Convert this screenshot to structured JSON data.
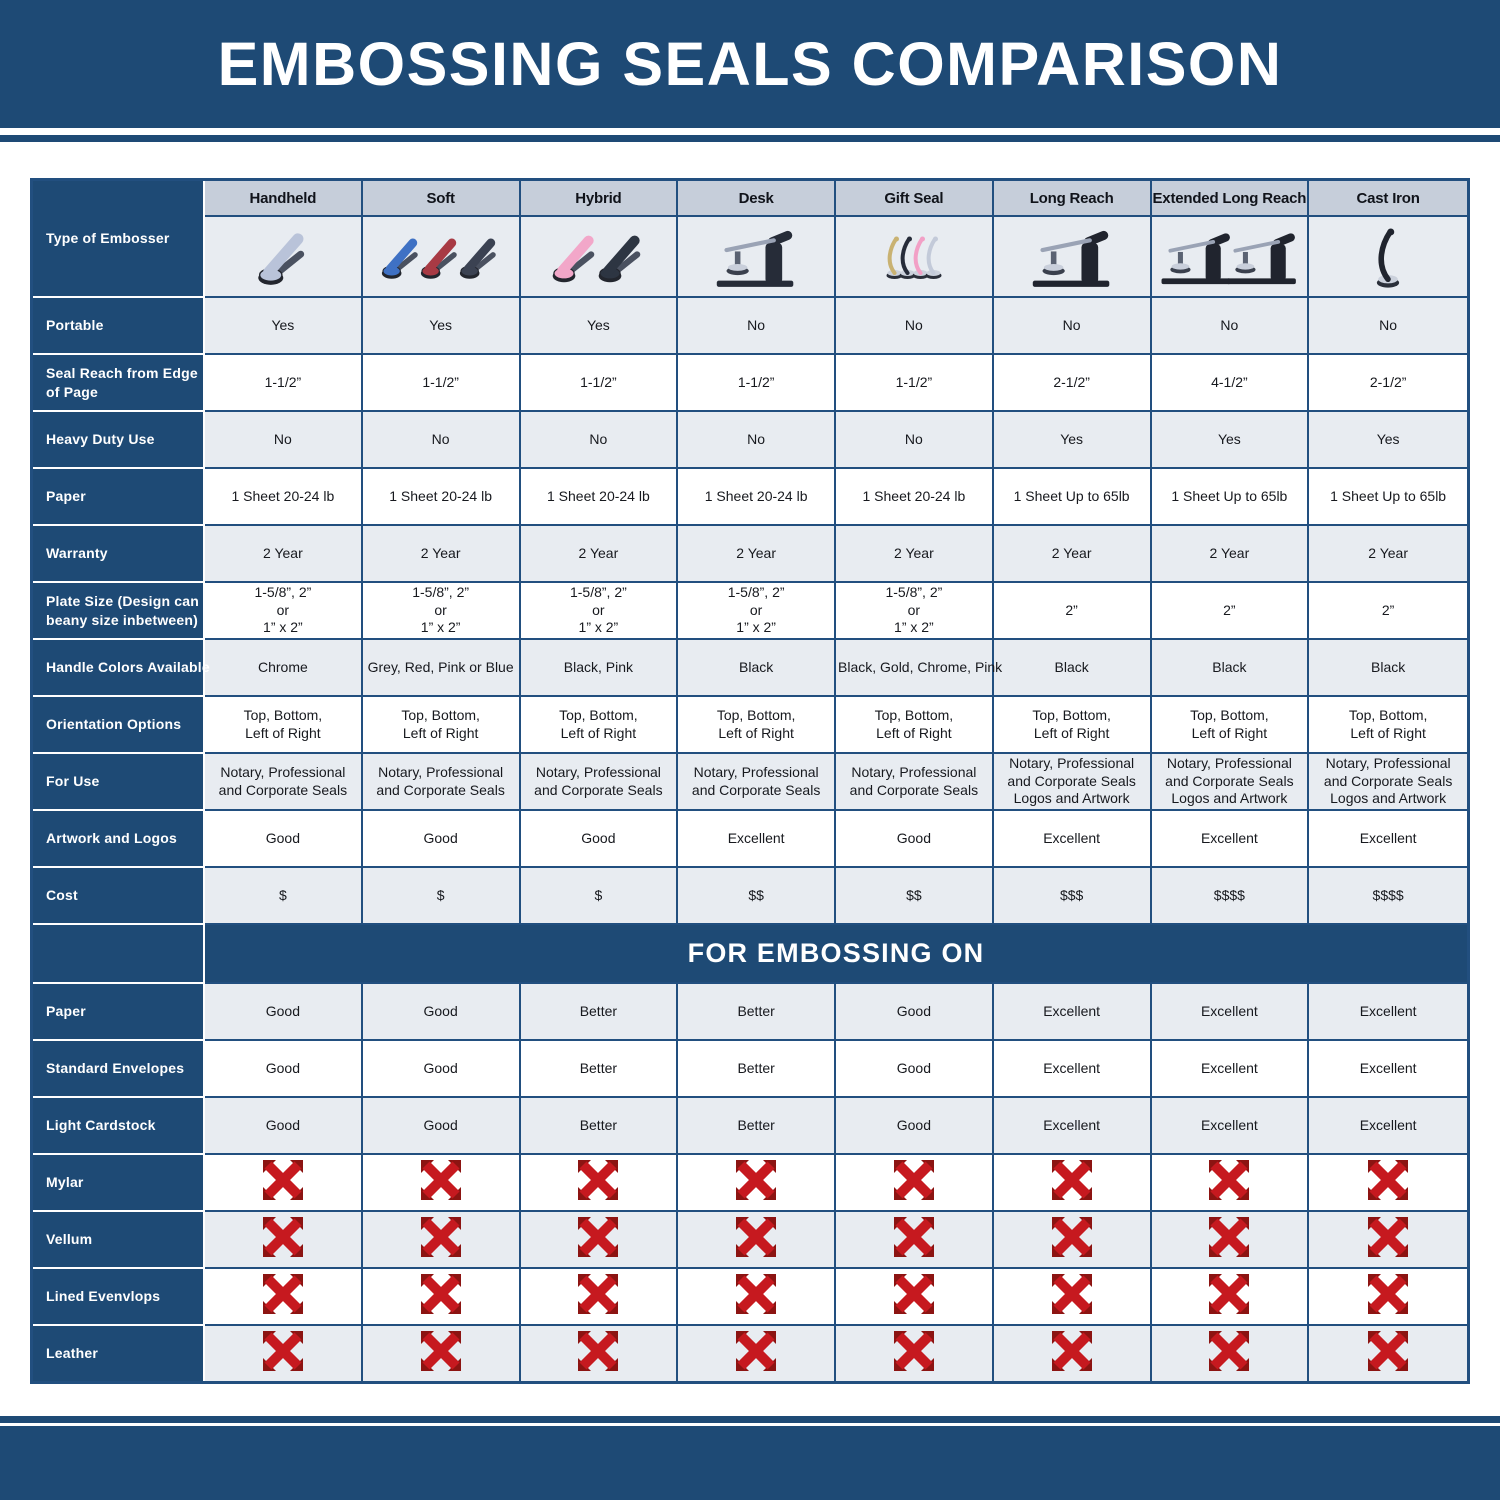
{
  "page": {
    "title": "EMBOSSING SEALS COMPARISON",
    "section_title": "FOR EMBOSSING ON",
    "corner_label": "Type of Embosser"
  },
  "colors": {
    "primary_blue": "#1E4A75",
    "border_navy": "#224F7F",
    "header_cell_bg": "#C6CEDA",
    "alt_row_bg": "#E8ECF1",
    "x_red": "#C6191F",
    "x_dark_red": "#8C1412",
    "chrome": "#B9C3D9"
  },
  "columns": [
    {
      "name": "Handheld",
      "photo": {
        "kinds": [
          "plier"
        ],
        "colors": [
          "#B9C3D9"
        ]
      }
    },
    {
      "name": "Soft",
      "photo": {
        "kinds": [
          "plier",
          "plier",
          "plier"
        ],
        "colors": [
          "#3F71C4",
          "#A83A44",
          "#3B4252"
        ]
      }
    },
    {
      "name": "Hybrid",
      "photo": {
        "kinds": [
          "plier",
          "plier"
        ],
        "colors": [
          "#F2A7C9",
          "#2D3542"
        ]
      }
    },
    {
      "name": "Desk",
      "photo": {
        "kinds": [
          "machine"
        ],
        "colors": [
          "#262C38"
        ]
      }
    },
    {
      "name": "Gift Seal",
      "photo": {
        "kinds": [
          "upright",
          "upright",
          "upright",
          "upright"
        ],
        "colors": [
          "#C9B272",
          "#262C3A",
          "#F2A0C6",
          "#C3CAD9"
        ]
      }
    },
    {
      "name": "Long Reach",
      "photo": {
        "kinds": [
          "machine"
        ],
        "colors": [
          "#20242E"
        ]
      }
    },
    {
      "name": "Extended Long Reach",
      "photo": {
        "kinds": [
          "machine",
          "machine"
        ],
        "colors": [
          "#20242E",
          "#20242E"
        ]
      }
    },
    {
      "name": "Cast Iron",
      "photo": {
        "kinds": [
          "upright"
        ],
        "colors": [
          "#20242E"
        ]
      }
    }
  ],
  "chart_data": {
    "type": "table",
    "title": "EMBOSSING SEALS COMPARISON",
    "section_2_title": "FOR EMBOSSING ON",
    "column_headers": [
      "",
      "Handheld",
      "Soft",
      "Hybrid",
      "Desk",
      "Gift Seal",
      "Long Reach",
      "Extended Long Reach",
      "Cast Iron"
    ],
    "section1_rows": [
      [
        "Portable",
        "Yes",
        "Yes",
        "Yes",
        "No",
        "No",
        "No",
        "No",
        "No"
      ],
      [
        "Seal Reach from Edge\nof Page",
        "1-1/2”",
        "1-1/2”",
        "1-1/2”",
        "1-1/2”",
        "1-1/2”",
        "2-1/2”",
        "4-1/2”",
        "2-1/2”"
      ],
      [
        "Heavy Duty Use",
        "No",
        "No",
        "No",
        "No",
        "No",
        "Yes",
        "Yes",
        "Yes"
      ],
      [
        "Paper",
        "1 Sheet 20-24 lb",
        "1 Sheet 20-24 lb",
        "1 Sheet 20-24 lb",
        "1 Sheet 20-24 lb",
        "1 Sheet 20-24 lb",
        "1 Sheet Up to 65lb",
        "1 Sheet Up to 65lb",
        "1 Sheet Up to 65lb"
      ],
      [
        "Warranty",
        "2 Year",
        "2 Year",
        "2 Year",
        "2 Year",
        "2 Year",
        "2 Year",
        "2 Year",
        "2 Year"
      ],
      [
        "Plate Size (Design can\nbeany size inbetween)",
        "1-5/8”, 2”\nor\n1” x 2”",
        "1-5/8”, 2”\nor\n1” x 2”",
        "1-5/8”, 2”\nor\n1” x 2”",
        "1-5/8”, 2”\nor\n1” x 2”",
        "1-5/8”, 2”\nor\n1” x 2”",
        "2”",
        "2”",
        "2”"
      ],
      [
        "Handle Colors Available",
        "Chrome",
        "Grey, Red, Pink or Blue",
        "Black, Pink",
        "Black",
        "Black, Gold, Chrome, Pink",
        "Black",
        "Black",
        "Black"
      ],
      [
        "Orientation Options",
        "Top, Bottom,\nLeft of Right",
        "Top, Bottom,\nLeft of Right",
        "Top, Bottom,\nLeft of Right",
        "Top, Bottom,\nLeft of Right",
        "Top, Bottom,\nLeft of Right",
        "Top, Bottom,\nLeft of Right",
        "Top, Bottom,\nLeft of Right",
        "Top, Bottom,\nLeft of Right"
      ],
      [
        "For Use",
        "Notary, Professional\nand Corporate Seals",
        "Notary, Professional\nand Corporate Seals",
        "Notary, Professional\nand Corporate Seals",
        "Notary, Professional\nand Corporate Seals",
        "Notary, Professional\nand Corporate Seals",
        "Notary, Professional\nand Corporate Seals\nLogos and Artwork",
        "Notary, Professional\nand Corporate Seals\nLogos and Artwork",
        "Notary, Professional\nand Corporate Seals\nLogos and Artwork"
      ],
      [
        "Artwork and Logos",
        "Good",
        "Good",
        "Good",
        "Excellent",
        "Good",
        "Excellent",
        "Excellent",
        "Excellent"
      ],
      [
        "Cost",
        "$",
        "$",
        "$",
        "$$",
        "$$",
        "$$$",
        "$$$$",
        "$$$$"
      ]
    ],
    "section2_rows": [
      [
        "Paper",
        "Good",
        "Good",
        "Better",
        "Better",
        "Good",
        "Excellent",
        "Excellent",
        "Excellent"
      ],
      [
        "Standard Envelopes",
        "Good",
        "Good",
        "Better",
        "Better",
        "Good",
        "Excellent",
        "Excellent",
        "Excellent"
      ],
      [
        "Light Cardstock",
        "Good",
        "Good",
        "Better",
        "Better",
        "Good",
        "Excellent",
        "Excellent",
        "Excellent"
      ],
      [
        "Mylar",
        "X",
        "X",
        "X",
        "X",
        "X",
        "X",
        "X",
        "X"
      ],
      [
        "Vellum",
        "X",
        "X",
        "X",
        "X",
        "X",
        "X",
        "X",
        "X"
      ],
      [
        "Lined Evenvlops",
        "X",
        "X",
        "X",
        "X",
        "X",
        "X",
        "X",
        "X"
      ],
      [
        "Leather",
        "X",
        "X",
        "X",
        "X",
        "X",
        "X",
        "X",
        "X"
      ]
    ]
  }
}
